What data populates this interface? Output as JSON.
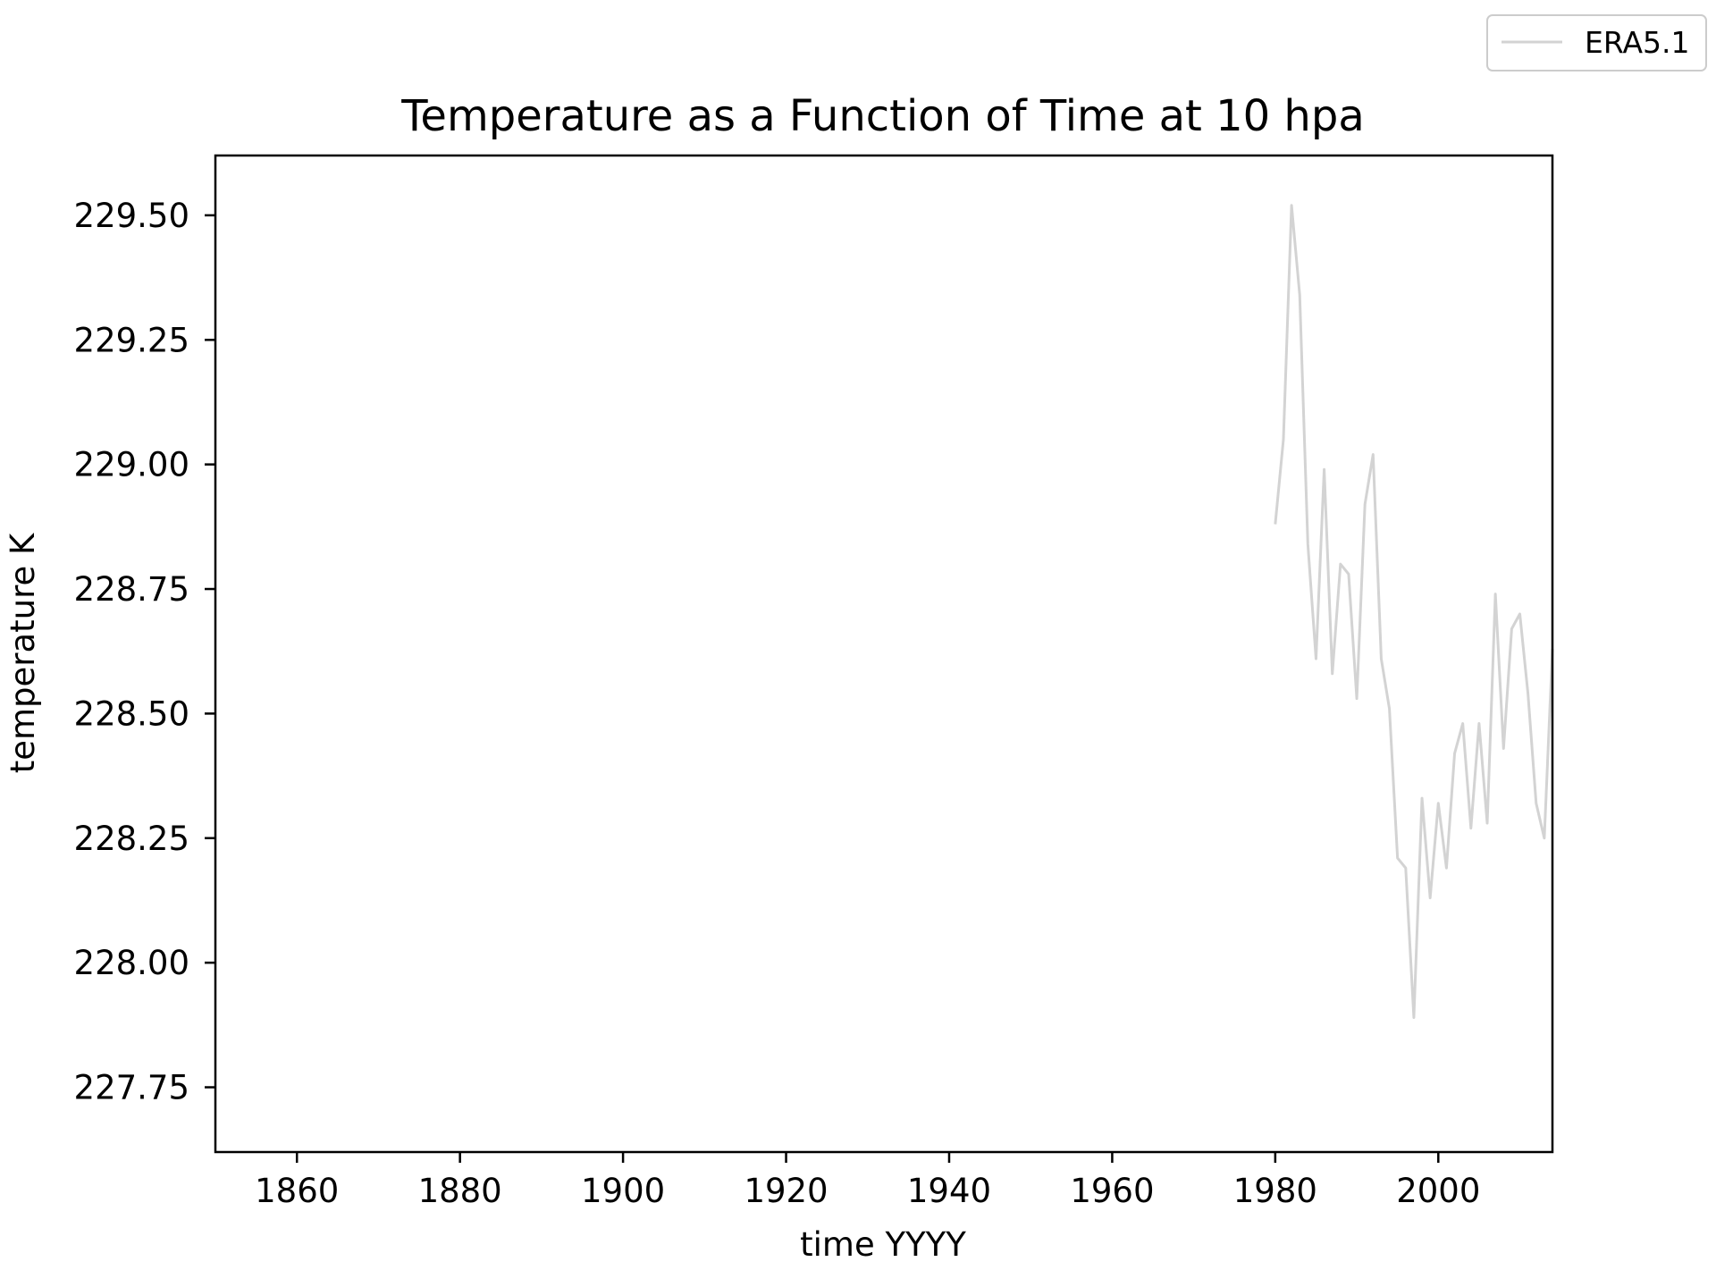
{
  "chart_data": {
    "type": "line",
    "title": "Temperature as a Function of Time at 10 hpa",
    "xlabel": "time YYYY",
    "ylabel": "temperature K",
    "xlim": [
      1850,
      2014
    ],
    "ylim": [
      227.62,
      229.62
    ],
    "xticks": [
      1860,
      1880,
      1900,
      1920,
      1940,
      1960,
      1980,
      2000
    ],
    "xtick_labels": [
      "1860",
      "1880",
      "1900",
      "1920",
      "1940",
      "1960",
      "1980",
      "2000"
    ],
    "yticks": [
      227.75,
      228.0,
      228.25,
      228.5,
      228.75,
      229.0,
      229.25,
      229.5
    ],
    "ytick_labels": [
      "227.75",
      "228.00",
      "228.25",
      "228.50",
      "228.75",
      "229.00",
      "229.25",
      "229.50"
    ],
    "grid": false,
    "legend_position": "top-right (outside axes)",
    "series": [
      {
        "name": "ERA5.1",
        "color": "#d3d3d3",
        "x": [
          1980,
          1981,
          1982,
          1983,
          1984,
          1985,
          1986,
          1987,
          1988,
          1989,
          1990,
          1991,
          1992,
          1993,
          1994,
          1995,
          1996,
          1997,
          1998,
          1999,
          2000,
          2001,
          2002,
          2003,
          2004,
          2005,
          2006,
          2007,
          2008,
          2009,
          2010,
          2011,
          2012,
          2013,
          2014
        ],
        "y": [
          228.88,
          229.05,
          229.52,
          229.34,
          228.84,
          228.61,
          228.99,
          228.58,
          228.8,
          228.78,
          228.53,
          228.92,
          229.02,
          228.61,
          228.51,
          228.21,
          228.19,
          227.89,
          228.33,
          228.13,
          228.32,
          228.19,
          228.42,
          228.48,
          228.27,
          228.48,
          228.28,
          228.74,
          228.43,
          228.67,
          228.7,
          228.54,
          228.32,
          228.25,
          228.63
        ]
      }
    ]
  }
}
